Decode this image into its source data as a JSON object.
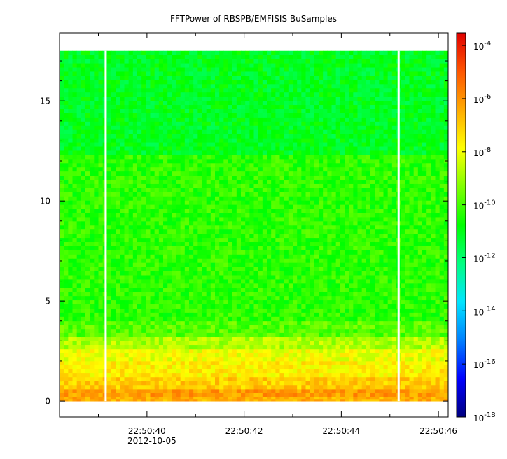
{
  "chart_data": {
    "type": "heatmap",
    "title": "FFTPower of RBSPB/EMFISIS  BuSamples",
    "xlabel": "",
    "ylabel": "",
    "x_tick_labels": [
      "22:50:40",
      "22:50:42",
      "22:50:44",
      "22:50:46"
    ],
    "x_tick_seconds": [
      40,
      42,
      44,
      46
    ],
    "x_date_label": "2012-10-05",
    "xlim_seconds": [
      38.2,
      46.2
    ],
    "y_tick_values": [
      0,
      5,
      10,
      15
    ],
    "ylim": [
      -0.8,
      18.4
    ],
    "data_extent_y": [
      0,
      17.5
    ],
    "gaps_seconds": [
      39.15,
      45.18
    ],
    "z_scale": "log",
    "z_range": [
      1e-18,
      0.0003
    ],
    "colorbar_ticks": [
      {
        "base": "10",
        "exp": "-4",
        "value": 0.0001
      },
      {
        "base": "10",
        "exp": "-6",
        "value": 1e-06
      },
      {
        "base": "10",
        "exp": "-8",
        "value": 1e-08
      },
      {
        "base": "10",
        "exp": "-10",
        "value": 1e-10
      },
      {
        "base": "10",
        "exp": "-12",
        "value": 1e-12
      },
      {
        "base": "10",
        "exp": "-14",
        "value": 1e-14
      },
      {
        "base": "10",
        "exp": "-16",
        "value": 1e-16
      },
      {
        "base": "10",
        "exp": "-18",
        "value": 1e-18
      }
    ],
    "colormap": [
      "#00007f",
      "#0000ff",
      "#0080ff",
      "#00e5ff",
      "#00ff80",
      "#00ff00",
      "#80ff00",
      "#ffff00",
      "#ffaa00",
      "#ff5500",
      "#e00000"
    ],
    "bands": [
      {
        "y": [
          0,
          0.2
        ],
        "log_power": -6.5
      },
      {
        "y": [
          0.2,
          0.6
        ],
        "log_power": -6.2
      },
      {
        "y": [
          0.6,
          1.2
        ],
        "log_power": -7.0
      },
      {
        "y": [
          1.2,
          2.0
        ],
        "log_power": -7.6
      },
      {
        "y": [
          2.0,
          2.6
        ],
        "log_power": -8.0
      },
      {
        "y": [
          2.6,
          3.2
        ],
        "log_power": -8.8
      },
      {
        "y": [
          3.2,
          4.0
        ],
        "log_power": -9.8
      },
      {
        "y": [
          4.0,
          12.3
        ],
        "log_power": -10.3
      },
      {
        "y": [
          12.3,
          17.5
        ],
        "log_power": -11.1
      }
    ]
  }
}
